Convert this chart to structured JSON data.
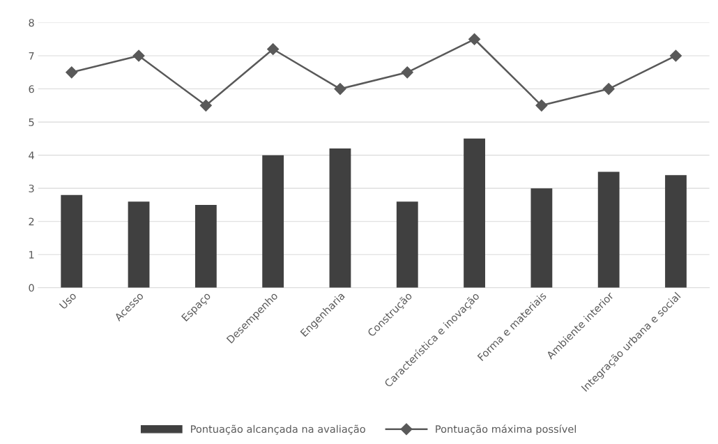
{
  "chart_data": {
    "type": "bar",
    "categories": [
      "Uso",
      "Acesso",
      "Espaço",
      "Desempenho",
      "Engenharia",
      "Construção",
      "Característica e inovação",
      "Forma e materiais",
      "Ambiente interior",
      "Integração urbana e social"
    ],
    "series": [
      {
        "name": "Pontuação alcançada na avaliação",
        "color": "#404040",
        "values": [
          2.8,
          2.6,
          2.5,
          4.0,
          4.2,
          2.6,
          4.5,
          3.0,
          3.5,
          3.4
        ]
      },
      {
        "name": "Pontuação máxima possível",
        "type": "line",
        "color": "#595959",
        "marker": "diamond",
        "values": [
          6.5,
          7.0,
          5.5,
          7.2,
          6.0,
          6.5,
          7.5,
          5.5,
          6.0,
          7.0
        ]
      }
    ],
    "ylim": [
      0,
      8
    ],
    "yticks": [
      0,
      1,
      2,
      3,
      4,
      5,
      6,
      7,
      8
    ],
    "grid": "y",
    "legend": "bottom"
  }
}
